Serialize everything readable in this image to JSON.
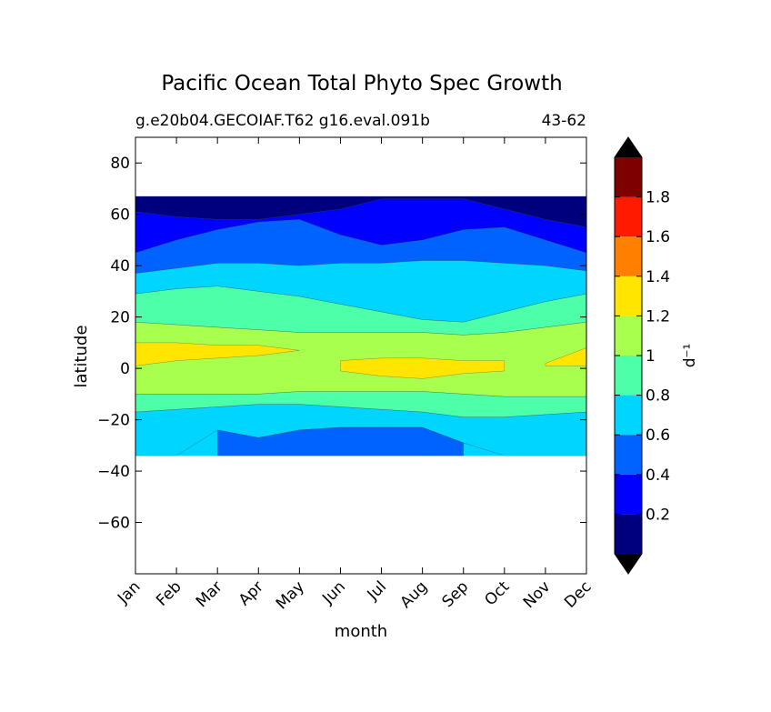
{
  "chart_data": {
    "type": "contourf",
    "title": "Pacific Ocean Total Phyto Spec Growth",
    "subtitle_left": "g.e20b04.GECOIAF.T62 g16.eval.091b",
    "subtitle_right": "43-62",
    "xlabel": "month",
    "ylabel": "latitude",
    "x_categories": [
      "Jan",
      "Feb",
      "Mar",
      "Apr",
      "May",
      "Jun",
      "Jul",
      "Aug",
      "Sep",
      "Oct",
      "Nov",
      "Dec"
    ],
    "xlim": [
      1,
      12
    ],
    "ylim": [
      -80,
      90
    ],
    "y_ticks": [
      80,
      60,
      40,
      20,
      0,
      -20,
      -40,
      -60
    ],
    "y_tick_labels": [
      "80",
      "60",
      "40",
      "20",
      "0",
      "−20",
      "−40",
      "−60"
    ],
    "data_lat_range": [
      -34,
      67
    ],
    "colorbar": {
      "label": "d⁻¹",
      "levels": [
        0,
        0.2,
        0.4,
        0.6,
        0.8,
        1.0,
        1.2,
        1.4,
        1.6,
        1.8,
        2.0
      ],
      "tick_values": [
        0.2,
        0.4,
        0.6,
        0.8,
        1.0,
        1.2,
        1.4,
        1.6,
        1.8
      ],
      "tick_labels": [
        "0.2",
        "0.4",
        "0.6",
        "0.8",
        "1",
        "1.2",
        "1.4",
        "1.6",
        "1.8"
      ],
      "colors": [
        "#00007f",
        "#0000ff",
        "#0063ff",
        "#00d5ff",
        "#4effa9",
        "#a9ff4e",
        "#ffe500",
        "#ff7f00",
        "#ff1a00",
        "#7f0000"
      ],
      "extend_under_color": "#000000",
      "extend_over_color": "#000000"
    },
    "band_boundaries": [
      {
        "upper": "0.2",
        "lat": [
          61,
          59,
          58,
          58,
          60,
          62,
          66,
          66,
          66,
          62,
          58,
          55
        ]
      },
      {
        "upper": "0.4",
        "lat": [
          45,
          50,
          54,
          57,
          58,
          52,
          48,
          50,
          54,
          55,
          50,
          45
        ]
      },
      {
        "upper": "0.6",
        "lat": [
          37,
          39,
          41,
          41,
          40,
          41,
          41,
          42,
          42,
          41,
          40,
          38
        ]
      },
      {
        "upper": "0.8",
        "lat": [
          29,
          31,
          32,
          30,
          28,
          25,
          22,
          19,
          18,
          22,
          26,
          29
        ]
      },
      {
        "upper": "1.0",
        "lat": [
          18,
          17,
          16,
          15,
          14,
          14,
          14,
          14,
          13,
          14,
          16,
          18
        ]
      },
      {
        "upper": "1.2",
        "lat": [
          10,
          10,
          9,
          9,
          7,
          null,
          null,
          null,
          null,
          null,
          2,
          8
        ]
      },
      {
        "upper": "1.2 (lower edge)",
        "lat": [
          1,
          3,
          4,
          5,
          7,
          null,
          null,
          null,
          null,
          null,
          1,
          1
        ]
      },
      {
        "upper": "1.2 (central patch top)",
        "lat": [
          null,
          null,
          null,
          null,
          null,
          3,
          4,
          4,
          3,
          3,
          null,
          null
        ]
      },
      {
        "upper": "1.2 (central patch bottom)",
        "lat": [
          null,
          null,
          null,
          null,
          null,
          -1,
          -3,
          -4,
          -2,
          -1,
          null,
          null
        ]
      },
      {
        "upper": "1.0 (lower edge)",
        "lat": [
          -10,
          -10,
          -10,
          -10,
          -9,
          -9,
          -9,
          -9,
          -10,
          -11,
          -11,
          -11
        ]
      },
      {
        "upper": "0.8 (lower edge)",
        "lat": [
          -17,
          -16,
          -15,
          -14,
          -14,
          -15,
          -16,
          -17,
          -19,
          -19,
          -18,
          -17
        ]
      },
      {
        "upper": "0.6 (lower edge)",
        "lat": [
          null,
          null,
          -24,
          -27,
          -24,
          -23,
          -23,
          -23,
          -29,
          null,
          null,
          null
        ]
      }
    ]
  }
}
